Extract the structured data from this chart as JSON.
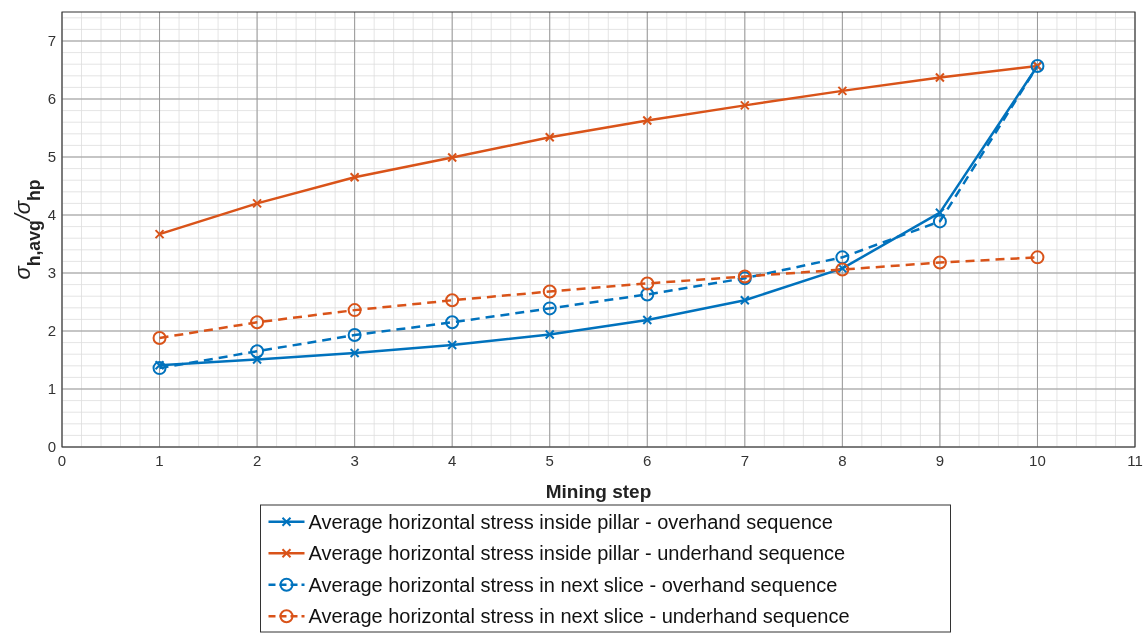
{
  "chart_data": {
    "type": "line",
    "xlabel": "Mining step",
    "ylabel": "σ$_{h,avg}$/σ$_{hp}$",
    "x": [
      1,
      2,
      3,
      4,
      5,
      6,
      7,
      8,
      9,
      10
    ],
    "xlim": [
      0,
      11
    ],
    "xticks": [
      0,
      1,
      2,
      3,
      4,
      5,
      6,
      7,
      8,
      9,
      10,
      11
    ],
    "ylim": [
      0,
      7.5
    ],
    "yticks": [
      0,
      1,
      2,
      3,
      4,
      5,
      6,
      7
    ],
    "grid": true,
    "legend": "bottom",
    "series": [
      {
        "name": "Average horizontal stress inside pillar - overhand sequence",
        "color": "#0072bd",
        "marker": "cross",
        "line_style": "solid",
        "values": [
          1.41,
          1.51,
          1.62,
          1.76,
          1.94,
          2.19,
          2.53,
          3.08,
          4.04,
          6.57
        ]
      },
      {
        "name": "Average horizontal stress inside pillar - underhand sequence",
        "color": "#d95319",
        "marker": "cross",
        "line_style": "solid",
        "values": [
          3.67,
          4.2,
          4.65,
          4.99,
          5.34,
          5.63,
          5.89,
          6.14,
          6.37,
          6.57
        ]
      },
      {
        "name": "Average horizontal stress in next slice - overhand sequence",
        "color": "#0072bd",
        "marker": "circle",
        "line_style": "dashed",
        "values": [
          1.36,
          1.65,
          1.93,
          2.15,
          2.39,
          2.63,
          2.91,
          3.27,
          3.89,
          6.57
        ]
      },
      {
        "name": "Average horizontal stress in next slice - underhand sequence",
        "color": "#d95319",
        "marker": "circle",
        "line_style": "dashed",
        "values": [
          1.88,
          2.15,
          2.36,
          2.53,
          2.68,
          2.82,
          2.94,
          3.06,
          3.18,
          3.27
        ]
      }
    ]
  }
}
